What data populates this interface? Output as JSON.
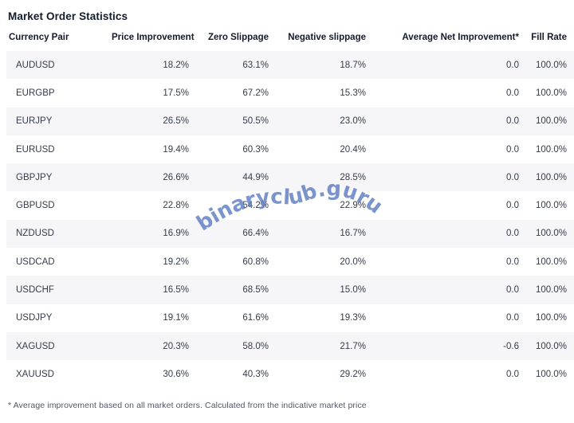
{
  "title": "Market Order Statistics",
  "table": {
    "headers": [
      "Currency Pair",
      "Price Improvement",
      "Zero Slippage",
      "Negative slippage",
      "Average Net Improvement*",
      "Fill Rate"
    ],
    "column_keys": [
      "currency-pair",
      "price-improvement",
      "zero-slippage",
      "negative-slippage",
      "avg-net-improvement",
      "fill-rate"
    ],
    "rows": [
      [
        "AUDUSD",
        "18.2%",
        "63.1%",
        "18.7%",
        "0.0",
        "100.0%"
      ],
      [
        "EURGBP",
        "17.5%",
        "67.2%",
        "15.3%",
        "0.0",
        "100.0%"
      ],
      [
        "EURJPY",
        "26.5%",
        "50.5%",
        "23.0%",
        "0.0",
        "100.0%"
      ],
      [
        "EURUSD",
        "19.4%",
        "60.3%",
        "20.4%",
        "0.0",
        "100.0%"
      ],
      [
        "GBPJPY",
        "26.6%",
        "44.9%",
        "28.5%",
        "0.0",
        "100.0%"
      ],
      [
        "GBPUSD",
        "22.8%",
        "54.2%",
        "22.9%",
        "0.0",
        "100.0%"
      ],
      [
        "NZDUSD",
        "16.9%",
        "66.4%",
        "16.7%",
        "0.0",
        "100.0%"
      ],
      [
        "USDCAD",
        "19.2%",
        "60.8%",
        "20.0%",
        "0.0",
        "100.0%"
      ],
      [
        "USDCHF",
        "16.5%",
        "68.5%",
        "15.0%",
        "0.0",
        "100.0%"
      ],
      [
        "USDJPY",
        "19.1%",
        "61.6%",
        "19.3%",
        "0.0",
        "100.0%"
      ],
      [
        "XAGUSD",
        "20.3%",
        "58.0%",
        "21.7%",
        "-0.6",
        "100.0%"
      ],
      [
        "XAUUSD",
        "30.6%",
        "40.3%",
        "29.2%",
        "0.0",
        "100.0%"
      ]
    ]
  },
  "footnote": "* Average improvement based on all market orders. Calculated from the indicative market price",
  "watermark": {
    "text": "binaryclub.guru",
    "color": "#5e7dc4"
  },
  "colors": {
    "heading": "#141c2b",
    "body_text": "#343c4b",
    "stripe": "#f6f6f8",
    "footnote_text": "#4f5866"
  }
}
